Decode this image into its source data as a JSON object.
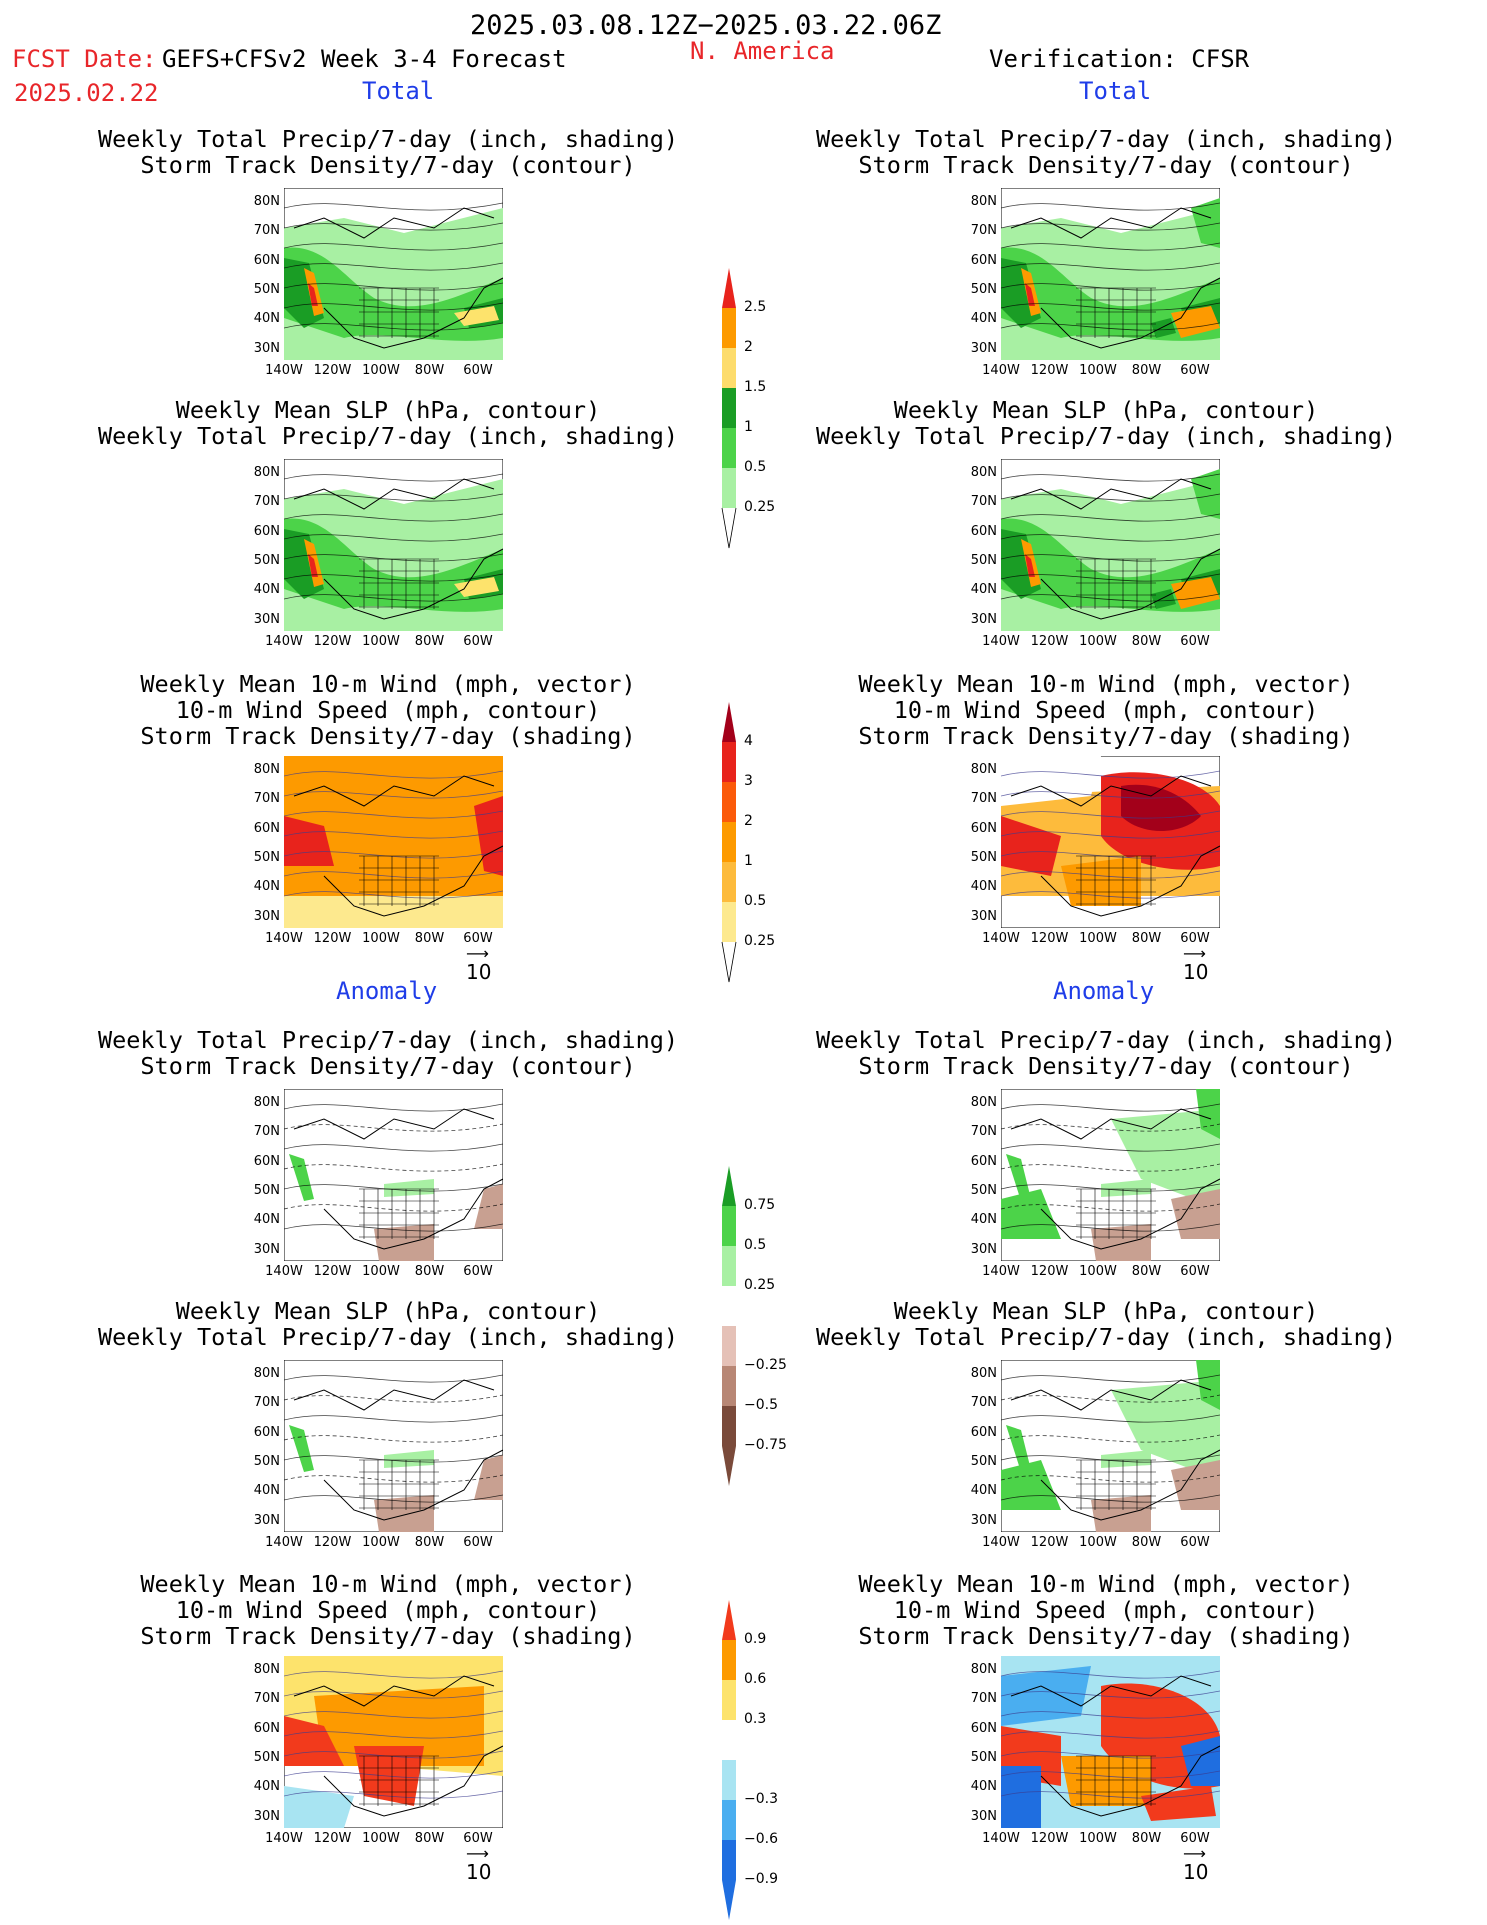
{
  "header": {
    "period": "2025.03.08.12Z−2025.03.22.06Z",
    "fcst_label": "FCST Date:",
    "fcst_date": "2025.02.22",
    "model": "GEFS+CFSv2 Week 3-4 Forecast",
    "region": "N. America",
    "verification": "Verification: CFSR"
  },
  "sections": {
    "total_left": "Total",
    "total_right": "Total",
    "anomaly_left": "Anomaly",
    "anomaly_right": "Anomaly"
  },
  "titles": {
    "precip_storm": [
      "Weekly Total Precip/7-day (inch, shading)",
      "Storm Track Density/7-day (contour)"
    ],
    "slp_precip": [
      "Weekly Mean SLP (hPa, contour)",
      "Weekly Total Precip/7-day (inch, shading)"
    ],
    "wind_storm": [
      "Weekly Mean 10-m Wind (mph, vector)",
      "10-m Wind Speed (mph, contour)",
      "Storm Track Density/7-day (shading)"
    ]
  },
  "axes": {
    "lat_ticks": [
      "80N",
      "70N",
      "60N",
      "50N",
      "40N",
      "30N"
    ],
    "lon_ticks": [
      "140W",
      "120W",
      "100W",
      "80W",
      "60W"
    ]
  },
  "vector_scale": "10",
  "colorbars": {
    "precip_total": {
      "labels": [
        "2.5",
        "2",
        "1.5",
        "1",
        "0.5",
        "0.25"
      ],
      "colors": [
        "#e8231c",
        "#fd9a00",
        "#fddc6c",
        "#1a9d25",
        "#4cd349",
        "#a8f0a3"
      ]
    },
    "storm_total": {
      "labels": [
        "4",
        "3",
        "2",
        "1",
        "0.5",
        "0.25"
      ],
      "colors": [
        "#a3001a",
        "#e8231c",
        "#fb5a0a",
        "#fd9a00",
        "#fdbb3c",
        "#fde98e"
      ]
    },
    "precip_anom": {
      "labels": [
        "0.75",
        "0.5",
        "0.25",
        "−0.25",
        "−0.5",
        "−0.75"
      ],
      "colors": [
        "#1a9d25",
        "#4cd349",
        "#a8f0a3",
        "#ffffff",
        "#e5c1b7",
        "#b88775",
        "#7a4a3a"
      ]
    },
    "storm_anom": {
      "labels": [
        "0.9",
        "0.6",
        "0.3",
        "−0.3",
        "−0.6",
        "−0.9"
      ],
      "colors": [
        "#f23a1c",
        "#fd9a00",
        "#fde36c",
        "#ffffff",
        "#a8e4f2",
        "#4aaef0",
        "#1f6ee0"
      ]
    }
  },
  "map_colors": {
    "land_white": "#ffffff",
    "precip_light": "#a8f0a3",
    "precip_mid": "#4cd349",
    "precip_dark": "#1a9d25",
    "storm_orange": "#fd9a00",
    "storm_red": "#e8231c",
    "brown": "#c8a091"
  }
}
